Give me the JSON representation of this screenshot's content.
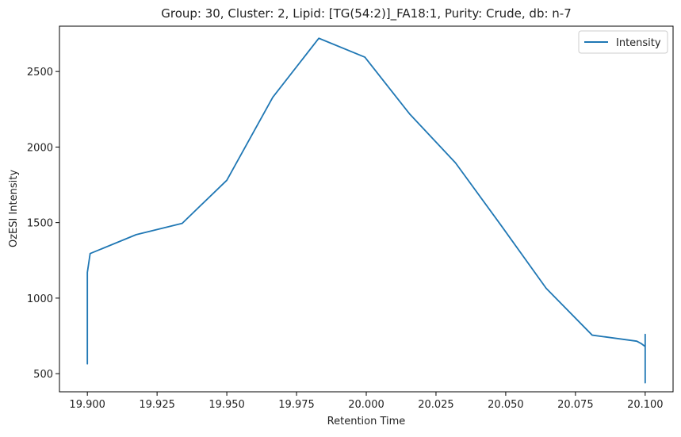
{
  "chart_data": {
    "type": "line",
    "title": "Group: 30, Cluster: 2, Lipid: [TG(54:2)]_FA18:1, Purity: Crude, db: n-7",
    "xlabel": "Retention Time",
    "ylabel": "OzESI Intensity",
    "xlim": [
      19.89,
      20.11
    ],
    "ylim": [
      380,
      2800
    ],
    "xticks": [
      19.9,
      19.925,
      19.95,
      19.975,
      20.0,
      20.025,
      20.05,
      20.075,
      20.1
    ],
    "xtick_labels": [
      "19.900",
      "19.925",
      "19.950",
      "19.975",
      "20.000",
      "20.025",
      "20.050",
      "20.075",
      "20.100"
    ],
    "yticks": [
      500,
      1000,
      1500,
      2000,
      2500
    ],
    "ytick_labels": [
      "500",
      "1000",
      "1500",
      "2000",
      "2500"
    ],
    "grid": false,
    "legend_position": "top-right",
    "series": [
      {
        "name": "Intensity",
        "color": "#1f77b4",
        "x": [
          19.9,
          19.9,
          19.9,
          19.9,
          19.9,
          19.9,
          19.901,
          19.9175,
          19.934,
          19.95,
          19.9665,
          19.983,
          19.9995,
          20.0155,
          20.032,
          20.048,
          20.0645,
          20.081,
          20.097,
          20.0985,
          20.1,
          20.1,
          20.1,
          20.1,
          20.1
        ],
        "y": [
          760,
          570,
          700,
          565,
          1100,
          1170,
          1295,
          1420,
          1495,
          1780,
          2330,
          2720,
          2595,
          2220,
          1895,
          1490,
          1065,
          755,
          715,
          700,
          680,
          440,
          760,
          520,
          680
        ]
      }
    ]
  }
}
